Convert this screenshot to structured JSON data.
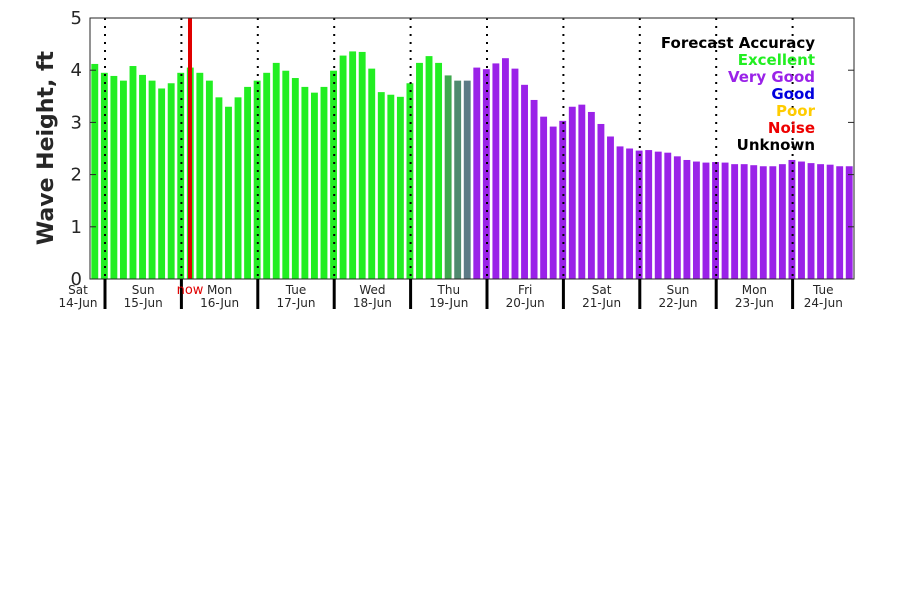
{
  "chart_data": {
    "type": "bar",
    "ylabel": "Wave Height, ft",
    "ylim": [
      0,
      5
    ],
    "yticks": [
      "0",
      "1",
      "2",
      "3",
      "4",
      "5"
    ],
    "days": [
      {
        "dow": "Sat",
        "date": "14-Jun"
      },
      {
        "dow": "Sun",
        "date": "15-Jun"
      },
      {
        "dow": "Mon",
        "date": "16-Jun"
      },
      {
        "dow": "Tue",
        "date": "17-Jun"
      },
      {
        "dow": "Wed",
        "date": "18-Jun"
      },
      {
        "dow": "Thu",
        "date": "19-Jun"
      },
      {
        "dow": "Fri",
        "date": "20-Jun"
      },
      {
        "dow": "Sat",
        "date": "21-Jun"
      },
      {
        "dow": "Sun",
        "date": "22-Jun"
      },
      {
        "dow": "Mon",
        "date": "23-Jun"
      },
      {
        "dow": "Tue",
        "date": "24-Jun"
      }
    ],
    "now_label": "now",
    "now_color": "#e00000",
    "values": [
      4.12,
      3.95,
      3.89,
      3.8,
      4.08,
      3.91,
      3.8,
      3.65,
      3.75,
      3.95,
      4.05,
      3.95,
      3.8,
      3.48,
      3.3,
      3.48,
      3.68,
      3.8,
      3.95,
      4.14,
      3.99,
      3.85,
      3.68,
      3.57,
      3.68,
      3.99,
      4.28,
      4.36,
      4.35,
      4.03,
      3.58,
      3.53,
      3.49,
      3.75,
      4.14,
      4.27,
      4.14,
      3.9,
      3.8,
      3.8,
      4.05,
      4.02,
      4.13,
      4.23,
      4.03,
      3.72,
      3.43,
      3.11,
      2.92,
      3.03,
      3.3,
      3.34,
      3.2,
      2.97,
      2.73,
      2.54,
      2.5,
      2.46,
      2.47,
      2.44,
      2.42,
      2.35,
      2.28,
      2.25,
      2.23,
      2.24,
      2.23,
      2.2,
      2.2,
      2.18,
      2.16,
      2.16,
      2.2,
      2.28,
      2.25,
      2.22,
      2.2,
      2.19,
      2.16,
      2.16
    ],
    "accuracy": [
      "excellent",
      "excellent",
      "excellent",
      "excellent",
      "excellent",
      "excellent",
      "excellent",
      "excellent",
      "excellent",
      "excellent",
      "excellent",
      "excellent",
      "excellent",
      "excellent",
      "excellent",
      "excellent",
      "excellent",
      "excellent",
      "excellent",
      "excellent",
      "excellent",
      "excellent",
      "excellent",
      "excellent",
      "excellent",
      "excellent",
      "excellent",
      "excellent",
      "excellent",
      "excellent",
      "excellent",
      "excellent",
      "excellent",
      "excellent",
      "excellent",
      "excellent",
      "excellent",
      "blend1",
      "blend2",
      "blend3",
      "verygood",
      "verygood",
      "verygood",
      "verygood",
      "verygood",
      "verygood",
      "verygood",
      "verygood",
      "verygood",
      "verygood",
      "verygood",
      "verygood",
      "verygood",
      "verygood",
      "verygood",
      "verygood",
      "verygood",
      "verygood",
      "verygood",
      "verygood",
      "verygood",
      "verygood",
      "verygood",
      "verygood",
      "verygood",
      "verygood",
      "verygood",
      "verygood",
      "verygood",
      "verygood",
      "verygood",
      "verygood",
      "verygood",
      "verygood",
      "verygood",
      "verygood",
      "verygood",
      "verygood",
      "verygood",
      "verygood"
    ],
    "colors": {
      "excellent": "#22ee22",
      "blend1": "#3fa84f",
      "blend2": "#4f8a6f",
      "blend3": "#5c7a86",
      "verygood": "#9a22e8",
      "good": "#0000dd",
      "poor": "#ffcc00",
      "noise": "#ee0000",
      "unknown": "#000000"
    },
    "legend": {
      "title": "Forecast Accuracy",
      "entries": [
        {
          "label": "Excellent",
          "color": "#22ee22"
        },
        {
          "label": "Very Good",
          "color": "#9a22e8"
        },
        {
          "label": "Good",
          "color": "#0000dd"
        },
        {
          "label": "Poor",
          "color": "#ffcc00"
        },
        {
          "label": "Noise",
          "color": "#ee0000"
        },
        {
          "label": "Unknown",
          "color": "#000000"
        }
      ]
    },
    "legend_position": "top-right",
    "grid": "dotted vertical lines at day boundaries"
  }
}
